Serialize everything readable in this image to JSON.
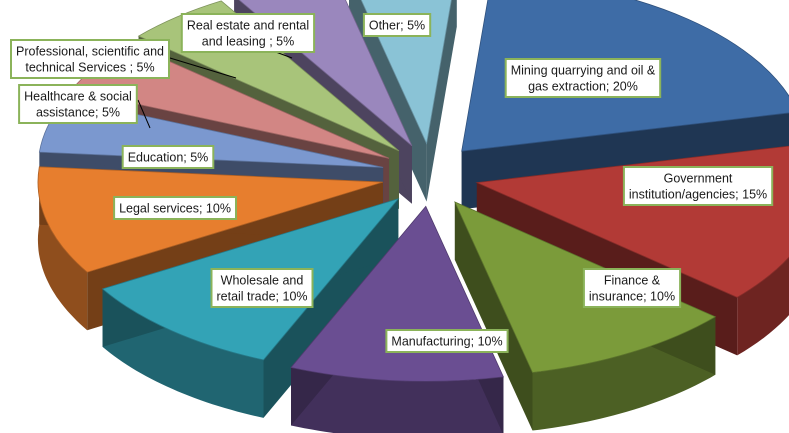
{
  "chart_data": {
    "type": "pie",
    "style": "3d-exploded",
    "title": "",
    "slices": [
      {
        "label": "Mining quarrying and oil & gas extraction",
        "value": 20,
        "display": [
          "Mining quarrying and oil &",
          "gas extraction; 20%"
        ],
        "color": "#3e6ca6"
      },
      {
        "label": "Government institution/agencies",
        "value": 15,
        "display": [
          "Government",
          "institution/agencies; 15%"
        ],
        "color": "#b23a36"
      },
      {
        "label": "Finance & insurance",
        "value": 10,
        "display": [
          "Finance &",
          "insurance; 10%"
        ],
        "color": "#7b9b3a"
      },
      {
        "label": "Manufacturing",
        "value": 10,
        "display": [
          "Manufacturing; 10%"
        ],
        "color": "#6a4e92"
      },
      {
        "label": "Wholesale and retail trade",
        "value": 10,
        "display": [
          "Wholesale and",
          "retail trade; 10%"
        ],
        "color": "#33a3b6"
      },
      {
        "label": "Legal services",
        "value": 10,
        "display": [
          "Legal services; 10%"
        ],
        "color": "#e77e2e"
      },
      {
        "label": "Education",
        "value": 5,
        "display": [
          "Education; 5%"
        ],
        "color": "#7b98cf"
      },
      {
        "label": "Healthcare & social assistance",
        "value": 5,
        "display": [
          "Healthcare & social",
          "assistance; 5%"
        ],
        "color": "#d28684"
      },
      {
        "label": "Professional, scientific and technical Services",
        "value": 5,
        "display": [
          "Professional, scientific and",
          "technical Services ; 5%"
        ],
        "color": "#a8c47a"
      },
      {
        "label": "Real estate and rental and leasing",
        "value": 5,
        "display": [
          "Real estate and rental",
          "and leasing ; 5%"
        ],
        "color": "#9a87bd"
      },
      {
        "label": "Other",
        "value": 5,
        "display": [
          "Other; 5%"
        ],
        "color": "#8ac3d6"
      }
    ]
  }
}
